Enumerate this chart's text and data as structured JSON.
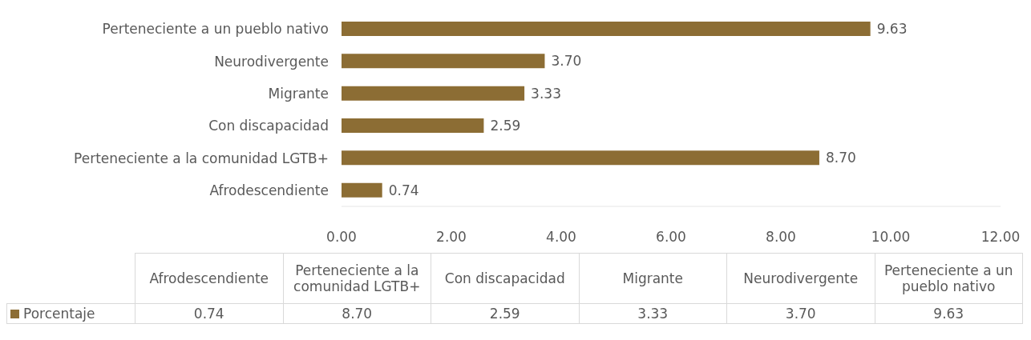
{
  "chart_data": {
    "type": "bar",
    "orientation": "horizontal",
    "categories": [
      "Perteneciente a un pueblo nativo",
      "Neurodivergente",
      "Migrante",
      "Con discapacidad",
      "Perteneciente a la comunidad LGTB+",
      "Afrodescendiente"
    ],
    "series": [
      {
        "name": "Porcentaje",
        "color": "#8c6d34",
        "values": [
          9.63,
          3.7,
          3.33,
          2.59,
          8.7,
          0.74
        ],
        "value_labels": [
          "9.63",
          "3.70",
          "3.33",
          "2.59",
          "8.70",
          "0.74"
        ]
      }
    ],
    "xlim": [
      0,
      12
    ],
    "xticks": [
      {
        "value": 0,
        "label": "0.00"
      },
      {
        "value": 2,
        "label": "2.00"
      },
      {
        "value": 4,
        "label": "4.00"
      },
      {
        "value": 6,
        "label": "6.00"
      },
      {
        "value": 8,
        "label": "8.00"
      },
      {
        "value": 10,
        "label": "10.00"
      },
      {
        "value": 12,
        "label": "12.00"
      }
    ],
    "grid": false,
    "legend": "bottom"
  }
}
